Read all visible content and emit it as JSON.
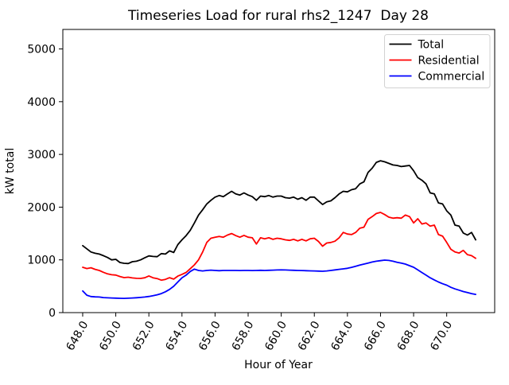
{
  "chart_data": {
    "type": "line",
    "title": "Timeseries Load for rural rhs2_1247  Day 28",
    "xlabel": "Hour of Year",
    "ylabel": "kW total",
    "xlim": [
      646.8,
      672.9
    ],
    "ylim": [
      0,
      5370
    ],
    "grid": false,
    "legend_position": "upper right",
    "xticks": [
      648,
      650,
      652,
      654,
      656,
      658,
      660,
      662,
      664,
      666,
      668,
      670
    ],
    "xtick_labels": [
      "648.0",
      "650.0",
      "652.0",
      "654.0",
      "656.0",
      "658.0",
      "660.0",
      "662.0",
      "664.0",
      "666.0",
      "668.0",
      "670.0"
    ],
    "yticks": [
      0,
      1000,
      2000,
      3000,
      4000,
      5000
    ],
    "ytick_labels": [
      "0",
      "1000",
      "2000",
      "3000",
      "4000",
      "5000"
    ],
    "x_start": 648.0,
    "x_step": 0.25,
    "x_end": 671.75,
    "series": [
      {
        "name": "Total",
        "color": "#000000",
        "values": [
          1270,
          1210,
          1150,
          1125,
          1110,
          1080,
          1045,
          1000,
          1010,
          950,
          935,
          930,
          965,
          975,
          1000,
          1040,
          1075,
          1065,
          1060,
          1120,
          1110,
          1170,
          1140,
          1290,
          1380,
          1460,
          1560,
          1700,
          1850,
          1950,
          2060,
          2130,
          2190,
          2220,
          2200,
          2250,
          2300,
          2250,
          2230,
          2270,
          2230,
          2200,
          2130,
          2210,
          2200,
          2220,
          2190,
          2210,
          2210,
          2180,
          2170,
          2190,
          2150,
          2180,
          2130,
          2190,
          2190,
          2120,
          2050,
          2100,
          2120,
          2180,
          2250,
          2300,
          2290,
          2330,
          2350,
          2440,
          2480,
          2660,
          2740,
          2850,
          2880,
          2860,
          2830,
          2800,
          2790,
          2770,
          2780,
          2790,
          2690,
          2560,
          2510,
          2440,
          2270,
          2250,
          2080,
          2060,
          1930,
          1850,
          1660,
          1640,
          1510,
          1470,
          1520,
          1380
        ]
      },
      {
        "name": "Residential",
        "color": "#ff0000",
        "values": [
          860,
          835,
          850,
          820,
          800,
          765,
          735,
          718,
          712,
          685,
          663,
          672,
          658,
          650,
          648,
          660,
          695,
          660,
          645,
          615,
          630,
          662,
          635,
          693,
          725,
          762,
          833,
          905,
          1000,
          1150,
          1330,
          1410,
          1430,
          1445,
          1430,
          1470,
          1500,
          1460,
          1430,
          1465,
          1430,
          1420,
          1300,
          1420,
          1400,
          1420,
          1390,
          1410,
          1400,
          1380,
          1370,
          1390,
          1360,
          1390,
          1360,
          1400,
          1410,
          1350,
          1260,
          1320,
          1330,
          1355,
          1420,
          1520,
          1490,
          1480,
          1520,
          1600,
          1620,
          1770,
          1820,
          1880,
          1900,
          1860,
          1810,
          1790,
          1800,
          1790,
          1850,
          1820,
          1700,
          1780,
          1680,
          1700,
          1640,
          1660,
          1480,
          1450,
          1330,
          1200,
          1150,
          1130,
          1180,
          1100,
          1080,
          1030
        ]
      },
      {
        "name": "Commercial",
        "color": "#0000ff",
        "values": [
          410,
          330,
          305,
          298,
          295,
          285,
          280,
          277,
          274,
          271,
          270,
          273,
          277,
          282,
          288,
          296,
          306,
          320,
          338,
          360,
          395,
          440,
          500,
          580,
          660,
          710,
          780,
          825,
          800,
          790,
          800,
          805,
          800,
          795,
          800,
          800,
          800,
          800,
          798,
          800,
          800,
          798,
          800,
          802,
          800,
          802,
          805,
          808,
          810,
          808,
          805,
          802,
          800,
          798,
          795,
          792,
          790,
          788,
          785,
          790,
          800,
          810,
          820,
          830,
          840,
          858,
          880,
          900,
          920,
          940,
          960,
          975,
          985,
          995,
          990,
          975,
          955,
          938,
          920,
          890,
          860,
          810,
          760,
          710,
          660,
          620,
          580,
          548,
          520,
          480,
          450,
          425,
          400,
          380,
          360,
          345
        ]
      }
    ]
  }
}
